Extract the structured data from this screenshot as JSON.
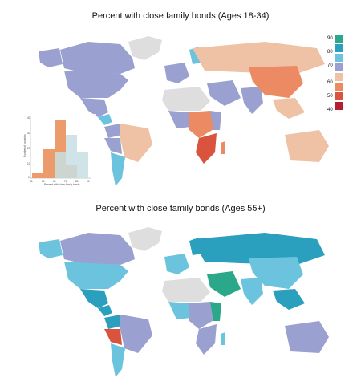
{
  "map1": {
    "title": "Percent with close family bonds (Ages 18-34)",
    "legend_ticks": [
      "90",
      "80",
      "70",
      "60",
      "50",
      "40"
    ],
    "legend_colors": [
      "#2aa889",
      "#2b9fbe",
      "#6cc3dd",
      "#9aa0cf",
      "#efc2a5",
      "#ec8a63",
      "#d9533d",
      "#b21f2f"
    ],
    "histogram": {
      "xlabel": "Percent with close family bonds",
      "ylabel": "Number of countries",
      "xticks": [
        "40",
        "50",
        "60",
        "70",
        "80",
        "90"
      ],
      "yticks": [
        "0",
        "10",
        "20",
        "30",
        "40"
      ]
    }
  },
  "map2": {
    "title": "Percent with close family bonds (Ages 55+)"
  },
  "colors": {
    "no_data": "#dedede",
    "purple": "#9aa0cf",
    "peach": "#efc2a5",
    "orange": "#ec8a63",
    "red": "#d9533d",
    "teal_dark": "#2b9fbe",
    "teal_light": "#6cc3dd",
    "green": "#2aa889"
  }
}
